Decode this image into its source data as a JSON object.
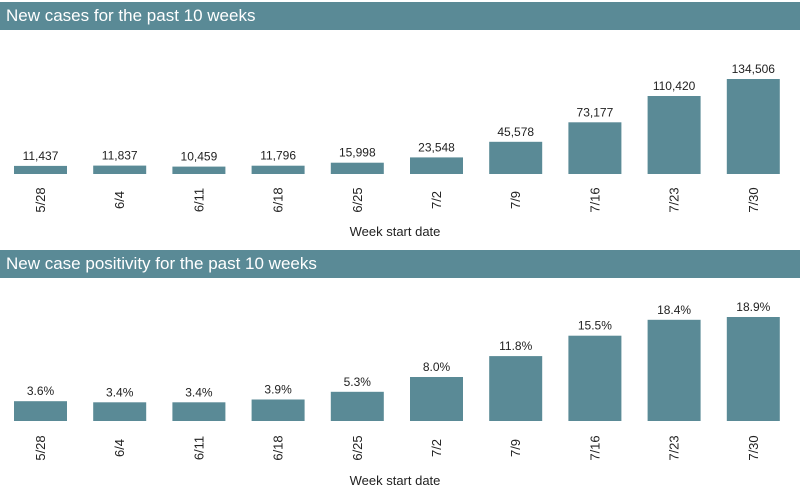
{
  "colors": {
    "header_bg": "#5a8a96",
    "bar": "#5a8a96",
    "header_text": "#ffffff"
  },
  "chart_data": [
    {
      "type": "bar",
      "title": "New cases for the past 10 weeks",
      "xlabel": "Week start date",
      "ylabel": "",
      "categories": [
        "5/28",
        "6/4",
        "6/11",
        "6/18",
        "6/25",
        "7/2",
        "7/9",
        "7/16",
        "7/23",
        "7/30"
      ],
      "values": [
        11437,
        11837,
        10459,
        11796,
        15998,
        23548,
        45578,
        73177,
        110420,
        134506
      ],
      "value_labels": [
        "11,437",
        "11,837",
        "10,459",
        "11,796",
        "15,998",
        "23,548",
        "45,578",
        "73,177",
        "110,420",
        "134,506"
      ],
      "ylim": [
        0,
        134506
      ],
      "grid": false,
      "legend": "none"
    },
    {
      "type": "bar",
      "title": "New case positivity for the past 10 weeks",
      "xlabel": "Week start date",
      "ylabel": "",
      "categories": [
        "5/28",
        "6/4",
        "6/11",
        "6/18",
        "6/25",
        "7/2",
        "7/9",
        "7/16",
        "7/23",
        "7/30"
      ],
      "values": [
        3.6,
        3.4,
        3.4,
        3.9,
        5.3,
        8.0,
        11.8,
        15.5,
        18.4,
        18.9
      ],
      "value_labels": [
        "3.6%",
        "3.4%",
        "3.4%",
        "3.9%",
        "5.3%",
        "8.0%",
        "11.8%",
        "15.5%",
        "18.4%",
        "18.9%"
      ],
      "ylim": [
        0,
        18.9
      ],
      "grid": false,
      "legend": "none"
    }
  ]
}
